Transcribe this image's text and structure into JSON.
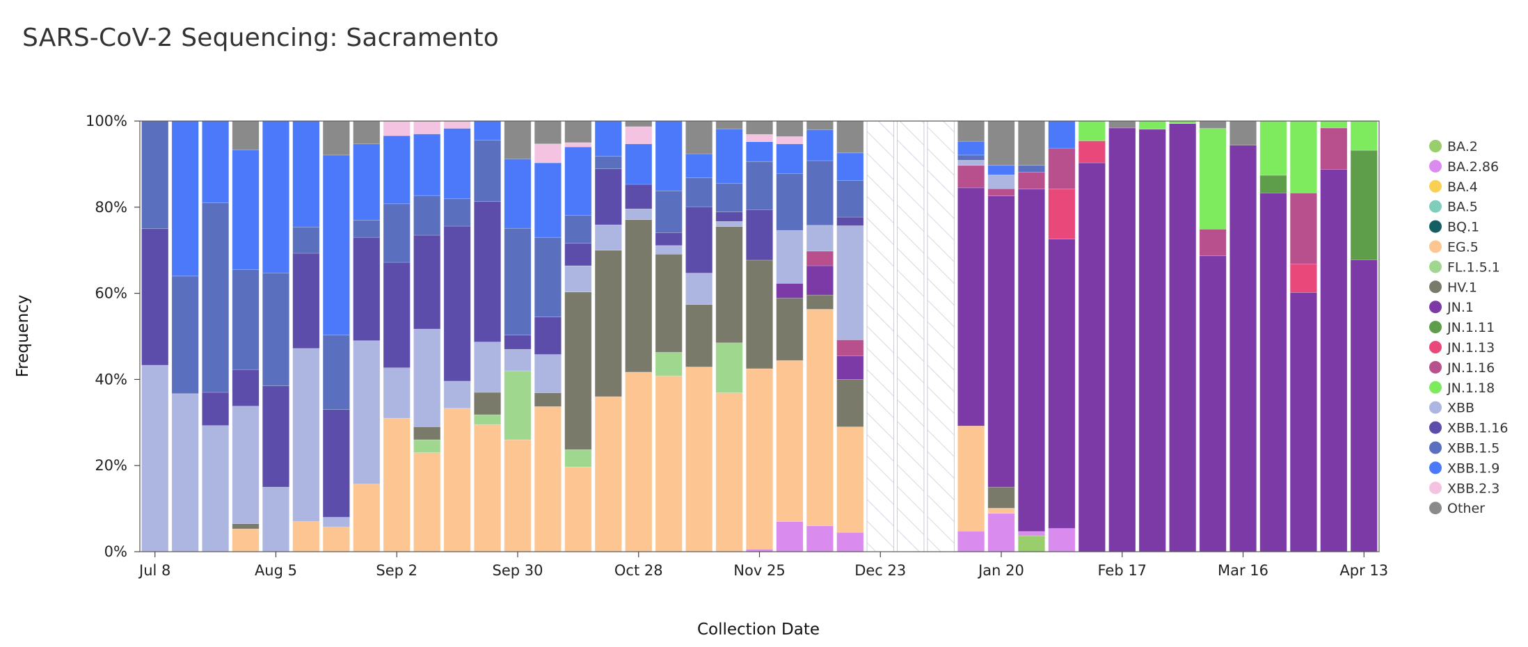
{
  "chart_data": {
    "type": "bar",
    "stacked": true,
    "title": "SARS-CoV-2 Sequencing: Sacramento",
    "xlabel": "Collection Date",
    "ylabel": "Frequency",
    "ylim": [
      0,
      100
    ],
    "yticks": [
      "0%",
      "20%",
      "40%",
      "60%",
      "80%",
      "100%"
    ],
    "xtick_labels": [
      "Jul 8",
      "Aug 5",
      "Sep 2",
      "Sep 30",
      "Oct 28",
      "Nov 25",
      "Dec 23",
      "Jan 20",
      "Feb 17",
      "Mar 16",
      "Apr 13"
    ],
    "xtick_week_index": [
      0,
      4,
      8,
      12,
      16,
      20,
      24,
      28,
      32,
      36,
      40
    ],
    "legend_position": "right",
    "series": [
      {
        "name": "BA.2",
        "color": "#9ACD6B"
      },
      {
        "name": "BA.2.86",
        "color": "#D98BEE"
      },
      {
        "name": "BA.4",
        "color": "#F8D154"
      },
      {
        "name": "BA.5",
        "color": "#7FCDBB"
      },
      {
        "name": "BQ.1",
        "color": "#155E63"
      },
      {
        "name": "EG.5",
        "color": "#FDC591"
      },
      {
        "name": "FL.1.5.1",
        "color": "#9FD78E"
      },
      {
        "name": "HV.1",
        "color": "#7A7A6A"
      },
      {
        "name": "JN.1",
        "color": "#7B3AA6"
      },
      {
        "name": "JN.1.11",
        "color": "#5E9D4A"
      },
      {
        "name": "JN.1.13",
        "color": "#E8487A"
      },
      {
        "name": "JN.1.16",
        "color": "#B8508E"
      },
      {
        "name": "JN.1.18",
        "color": "#7EEB5E"
      },
      {
        "name": "XBB",
        "color": "#ADB6E0"
      },
      {
        "name": "XBB.1.16",
        "color": "#5C4DAA"
      },
      {
        "name": "XBB.1.5",
        "color": "#5A70BF"
      },
      {
        "name": "XBB.1.9",
        "color": "#4C79FA"
      },
      {
        "name": "XBB.2.3",
        "color": "#F5C3E2"
      },
      {
        "name": "Other",
        "color": "#8A8A8A"
      }
    ],
    "weeks": [
      {
        "segments": [
          [
            "XBB",
            43.3
          ],
          [
            "XBB.1.16",
            31.7
          ],
          [
            "XBB.1.5",
            25.0
          ]
        ]
      },
      {
        "segments": [
          [
            "XBB",
            36.7
          ],
          [
            "XBB.1.5",
            27.3
          ],
          [
            "XBB.1.9",
            36.0
          ]
        ]
      },
      {
        "segments": [
          [
            "XBB",
            29.3
          ],
          [
            "XBB.1.16",
            7.7
          ],
          [
            "XBB.1.5",
            44.0
          ],
          [
            "XBB.1.9",
            19.0
          ]
        ]
      },
      {
        "segments": [
          [
            "EG.5",
            5.3
          ],
          [
            "HV.1",
            1.2
          ],
          [
            "XBB",
            27.3
          ],
          [
            "XBB.1.16",
            8.5
          ],
          [
            "XBB.1.5",
            23.2
          ],
          [
            "XBB.1.9",
            27.8
          ],
          [
            "Other",
            6.7
          ]
        ]
      },
      {
        "segments": [
          [
            "XBB",
            15.0
          ],
          [
            "XBB.1.16",
            23.5
          ],
          [
            "XBB.1.5",
            26.2
          ],
          [
            "XBB.1.9",
            35.3
          ]
        ]
      },
      {
        "segments": [
          [
            "EG.5",
            7.0
          ],
          [
            "XBB",
            40.2
          ],
          [
            "XBB.1.16",
            22.1
          ],
          [
            "XBB.1.5",
            6.1
          ],
          [
            "XBB.1.9",
            24.6
          ]
        ]
      },
      {
        "segments": [
          [
            "EG.5",
            5.7
          ],
          [
            "XBB",
            2.3
          ],
          [
            "XBB.1.16",
            25.0
          ],
          [
            "XBB.1.5",
            17.3
          ],
          [
            "XBB.1.9",
            41.8
          ],
          [
            "Other",
            7.9
          ]
        ]
      },
      {
        "segments": [
          [
            "EG.5",
            15.7
          ],
          [
            "XBB",
            33.3
          ],
          [
            "XBB.1.16",
            24.0
          ],
          [
            "XBB.1.5",
            4.0
          ],
          [
            "XBB.1.9",
            17.7
          ],
          [
            "Other",
            5.3
          ]
        ]
      },
      {
        "segments": [
          [
            "EG.5",
            31.0
          ],
          [
            "XBB",
            11.7
          ],
          [
            "XBB.1.16",
            24.5
          ],
          [
            "XBB.1.5",
            13.6
          ],
          [
            "XBB.1.9",
            15.8
          ],
          [
            "XBB.2.3",
            3.4
          ]
        ]
      },
      {
        "segments": [
          [
            "EG.5",
            23.0
          ],
          [
            "FL.1.5.1",
            3.0
          ],
          [
            "HV.1",
            3.0
          ],
          [
            "XBB",
            22.7
          ],
          [
            "XBB.1.16",
            21.8
          ],
          [
            "XBB.1.5",
            9.2
          ],
          [
            "XBB.1.9",
            14.3
          ],
          [
            "XBB.2.3",
            3.0
          ]
        ]
      },
      {
        "segments": [
          [
            "EG.5",
            33.3
          ],
          [
            "XBB",
            6.3
          ],
          [
            "XBB.1.16",
            36.0
          ],
          [
            "XBB.1.5",
            6.4
          ],
          [
            "XBB.1.9",
            16.3
          ],
          [
            "XBB.2.3",
            1.7
          ]
        ]
      },
      {
        "segments": [
          [
            "EG.5",
            29.5
          ],
          [
            "FL.1.5.1",
            2.3
          ],
          [
            "HV.1",
            5.2
          ],
          [
            "XBB",
            11.7
          ],
          [
            "XBB.1.16",
            32.6
          ],
          [
            "XBB.1.5",
            14.3
          ],
          [
            "XBB.1.9",
            4.4
          ]
        ]
      },
      {
        "segments": [
          [
            "EG.5",
            26.0
          ],
          [
            "FL.1.5.1",
            16.0
          ],
          [
            "XBB",
            5.0
          ],
          [
            "XBB.1.16",
            3.3
          ],
          [
            "XBB.1.5",
            24.8
          ],
          [
            "XBB.1.9",
            16.1
          ],
          [
            "Other",
            8.8
          ]
        ]
      },
      {
        "segments": [
          [
            "EG.5",
            33.7
          ],
          [
            "HV.1",
            3.2
          ],
          [
            "XBB",
            8.9
          ],
          [
            "XBB.1.16",
            8.7
          ],
          [
            "XBB.1.5",
            18.5
          ],
          [
            "XBB.1.9",
            17.3
          ],
          [
            "XBB.2.3",
            4.4
          ],
          [
            "Other",
            5.3
          ]
        ]
      },
      {
        "segments": [
          [
            "EG.5",
            19.7
          ],
          [
            "FL.1.5.1",
            4.0
          ],
          [
            "HV.1",
            36.6
          ],
          [
            "XBB",
            6.1
          ],
          [
            "XBB.1.16",
            5.2
          ],
          [
            "XBB.1.5",
            6.5
          ],
          [
            "XBB.1.9",
            15.9
          ],
          [
            "XBB.2.3",
            1.0
          ],
          [
            "Other",
            5.0
          ]
        ]
      },
      {
        "segments": [
          [
            "EG.5",
            36.0
          ],
          [
            "HV.1",
            34.0
          ],
          [
            "XBB",
            5.9
          ],
          [
            "XBB.1.16",
            13.0
          ],
          [
            "XBB.1.5",
            2.9
          ],
          [
            "XBB.1.9",
            8.2
          ]
        ]
      },
      {
        "segments": [
          [
            "EG.5",
            41.7
          ],
          [
            "HV.1",
            35.4
          ],
          [
            "XBB",
            2.5
          ],
          [
            "XBB.1.16",
            5.7
          ],
          [
            "XBB.1.9",
            9.4
          ],
          [
            "XBB.2.3",
            4.0
          ],
          [
            "Other",
            1.3
          ]
        ]
      },
      {
        "segments": [
          [
            "EG.5",
            40.8
          ],
          [
            "FL.1.5.1",
            5.5
          ],
          [
            "HV.1",
            22.8
          ],
          [
            "XBB",
            2.0
          ],
          [
            "XBB.1.16",
            3.0
          ],
          [
            "XBB.1.5",
            9.7
          ],
          [
            "XBB.1.9",
            16.2
          ]
        ]
      },
      {
        "segments": [
          [
            "EG.5",
            42.9
          ],
          [
            "HV.1",
            14.5
          ],
          [
            "XBB",
            7.3
          ],
          [
            "XBB.1.16",
            15.4
          ],
          [
            "XBB.1.5",
            6.7
          ],
          [
            "XBB.1.9",
            5.6
          ],
          [
            "Other",
            7.6
          ]
        ]
      },
      {
        "segments": [
          [
            "EG.5",
            36.9
          ],
          [
            "FL.1.5.1",
            11.6
          ],
          [
            "HV.1",
            27.0
          ],
          [
            "XBB",
            1.2
          ],
          [
            "XBB.1.16",
            2.2
          ],
          [
            "XBB.1.5",
            6.6
          ],
          [
            "XBB.1.9",
            12.7
          ],
          [
            "Other",
            1.8
          ]
        ]
      },
      {
        "segments": [
          [
            "BA.2.86",
            0.6
          ],
          [
            "EG.5",
            41.9
          ],
          [
            "HV.1",
            25.2
          ],
          [
            "XBB.1.16",
            11.7
          ],
          [
            "XBB.1.5",
            11.2
          ],
          [
            "XBB.1.9",
            4.6
          ],
          [
            "XBB.2.3",
            1.7
          ],
          [
            "Other",
            3.1
          ]
        ]
      },
      {
        "segments": [
          [
            "BA.2.86",
            7.0
          ],
          [
            "EG.5",
            37.4
          ],
          [
            "HV.1",
            14.5
          ],
          [
            "JN.1",
            3.4
          ],
          [
            "XBB",
            12.3
          ],
          [
            "XBB.1.5",
            13.2
          ],
          [
            "XBB.1.9",
            6.9
          ],
          [
            "XBB.2.3",
            1.7
          ],
          [
            "Other",
            3.6
          ]
        ]
      },
      {
        "segments": [
          [
            "BA.2.86",
            6.0
          ],
          [
            "EG.5",
            50.3
          ],
          [
            "HV.1",
            3.3
          ],
          [
            "JN.1",
            6.8
          ],
          [
            "JN.1.16",
            3.4
          ],
          [
            "XBB",
            6.0
          ],
          [
            "XBB.1.5",
            15.0
          ],
          [
            "XBB.1.9",
            7.2
          ],
          [
            "Other",
            2.0
          ]
        ]
      },
      {
        "segments": [
          [
            "BA.2.86",
            4.5
          ],
          [
            "EG.5",
            24.5
          ],
          [
            "HV.1",
            11.0
          ],
          [
            "JN.1",
            5.5
          ],
          [
            "JN.1.16",
            3.7
          ],
          [
            "XBB",
            26.5
          ],
          [
            "XBB.1.16",
            2.0
          ],
          [
            "XBB.1.5",
            8.5
          ],
          [
            "XBB.1.9",
            6.4
          ],
          [
            "Other",
            7.4
          ]
        ]
      },
      {
        "nodata": true,
        "segments": []
      },
      {
        "nodata": true,
        "segments": []
      },
      {
        "nodata": true,
        "segments": []
      },
      {
        "segments": [
          [
            "BA.2.86",
            4.8
          ],
          [
            "EG.5",
            24.4
          ],
          [
            "JN.1",
            55.3
          ],
          [
            "JN.1.16",
            5.2
          ],
          [
            "XBB",
            1.2
          ],
          [
            "XBB.1.5",
            1.2
          ],
          [
            "XBB.1.9",
            3.2
          ],
          [
            "Other",
            4.7
          ]
        ]
      },
      {
        "segments": [
          [
            "BA.2.86",
            8.9
          ],
          [
            "EG.5",
            1.2
          ],
          [
            "HV.1",
            4.9
          ],
          [
            "JN.1",
            67.6
          ],
          [
            "JN.1.16",
            1.7
          ],
          [
            "XBB",
            3.2
          ],
          [
            "XBB.1.9",
            2.2
          ],
          [
            "Other",
            10.3
          ]
        ]
      },
      {
        "segments": [
          [
            "BA.2",
            3.7
          ],
          [
            "BA.2.86",
            1.0
          ],
          [
            "JN.1",
            79.5
          ],
          [
            "JN.1.16",
            3.9
          ],
          [
            "XBB.1.5",
            1.6
          ],
          [
            "Other",
            10.3
          ]
        ]
      },
      {
        "segments": [
          [
            "BA.2.86",
            5.4
          ],
          [
            "JN.1",
            67.2
          ],
          [
            "JN.1.13",
            11.6
          ],
          [
            "JN.1.16",
            9.5
          ],
          [
            "XBB.1.9",
            6.3
          ]
        ]
      },
      {
        "segments": [
          [
            "JN.1",
            90.3
          ],
          [
            "JN.1.13",
            5.1
          ],
          [
            "JN.1.18",
            4.6
          ]
        ]
      },
      {
        "segments": [
          [
            "JN.1",
            98.4
          ],
          [
            "Other",
            1.6
          ]
        ]
      },
      {
        "segments": [
          [
            "JN.1",
            98.1
          ],
          [
            "JN.1.18",
            1.9
          ]
        ]
      },
      {
        "segments": [
          [
            "JN.1",
            99.4
          ],
          [
            "JN.1.18",
            0.6
          ]
        ]
      },
      {
        "segments": [
          [
            "JN.1",
            68.7
          ],
          [
            "JN.1.16",
            6.2
          ],
          [
            "JN.1.18",
            23.4
          ],
          [
            "Other",
            1.7
          ]
        ]
      },
      {
        "segments": [
          [
            "JN.1",
            94.4
          ],
          [
            "Other",
            5.6
          ]
        ]
      },
      {
        "segments": [
          [
            "JN.1",
            83.3
          ],
          [
            "JN.1.11",
            4.1
          ],
          [
            "JN.1.18",
            12.6
          ]
        ]
      },
      {
        "segments": [
          [
            "JN.1",
            60.2
          ],
          [
            "JN.1.13",
            6.6
          ],
          [
            "JN.1.16",
            16.5
          ],
          [
            "JN.1.18",
            16.7
          ]
        ]
      },
      {
        "segments": [
          [
            "JN.1",
            88.8
          ],
          [
            "JN.1.16",
            9.6
          ],
          [
            "JN.1.18",
            1.6
          ]
        ]
      },
      {
        "segments": [
          [
            "JN.1",
            67.8
          ],
          [
            "JN.1.11",
            25.4
          ],
          [
            "JN.1.18",
            6.8
          ]
        ]
      }
    ]
  }
}
